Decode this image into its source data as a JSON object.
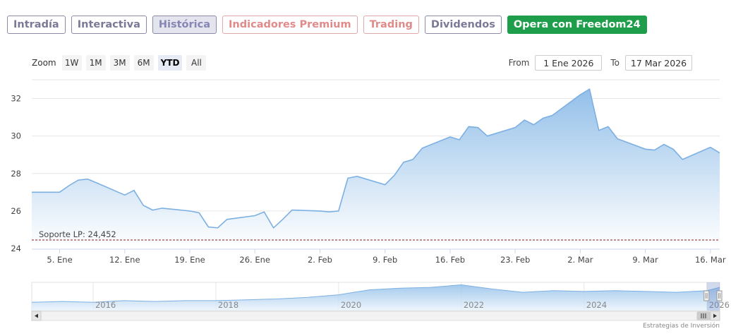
{
  "tabs": [
    {
      "label": "Intradía",
      "style": "normal"
    },
    {
      "label": "Interactiva",
      "style": "normal"
    },
    {
      "label": "Histórica",
      "style": "active"
    },
    {
      "label": "Indicadores Premium",
      "style": "premium"
    },
    {
      "label": "Trading",
      "style": "premium"
    },
    {
      "label": "Dividendos",
      "style": "normal"
    },
    {
      "label": "Opera con Freedom24",
      "style": "cta"
    }
  ],
  "zoom": {
    "label": "Zoom",
    "buttons": [
      "1W",
      "1M",
      "3M",
      "6M",
      "YTD",
      "All"
    ],
    "selected": "YTD"
  },
  "range": {
    "from_label": "From",
    "from_value": "1 Ene 2026",
    "to_label": "To",
    "to_value": "17 Mar 2026"
  },
  "colors": {
    "line": "#7cb0e2",
    "fill_top": "#8dbce8",
    "fill_bottom": "#ffffff",
    "grid": "#e6e6e6",
    "support": "#8b1a1a"
  },
  "chart_data": {
    "type": "area",
    "x_unit": "date",
    "ylim": [
      24,
      33
    ],
    "y_ticks": [
      24,
      26,
      28,
      30,
      32
    ],
    "x_ticks": [
      {
        "date": "2026-01-05",
        "label": "5. Ene"
      },
      {
        "date": "2026-01-12",
        "label": "12. Ene"
      },
      {
        "date": "2026-01-19",
        "label": "19. Ene"
      },
      {
        "date": "2026-01-26",
        "label": "26. Ene"
      },
      {
        "date": "2026-02-02",
        "label": "2. Feb"
      },
      {
        "date": "2026-02-09",
        "label": "9. Feb"
      },
      {
        "date": "2026-02-16",
        "label": "16. Feb"
      },
      {
        "date": "2026-02-23",
        "label": "23. Feb"
      },
      {
        "date": "2026-03-02",
        "label": "2. Mar"
      },
      {
        "date": "2026-03-09",
        "label": "9. Mar"
      },
      {
        "date": "2026-03-16",
        "label": "16. Mar"
      }
    ],
    "x_range": [
      "2026-01-02",
      "2026-03-17"
    ],
    "series": [
      {
        "x": [
          "2026-01-02",
          "2026-01-05",
          "2026-01-06",
          "2026-01-07",
          "2026-01-08",
          "2026-01-09",
          "2026-01-12",
          "2026-01-13",
          "2026-01-14",
          "2026-01-15",
          "2026-01-16",
          "2026-01-19",
          "2026-01-20",
          "2026-01-21",
          "2026-01-22",
          "2026-01-23",
          "2026-01-26",
          "2026-01-27",
          "2026-01-28",
          "2026-01-29",
          "2026-01-30",
          "2026-02-02",
          "2026-02-03",
          "2026-02-04",
          "2026-02-05",
          "2026-02-06",
          "2026-02-09",
          "2026-02-10",
          "2026-02-11",
          "2026-02-12",
          "2026-02-13",
          "2026-02-16",
          "2026-02-17",
          "2026-02-18",
          "2026-02-19",
          "2026-02-20",
          "2026-02-23",
          "2026-02-24",
          "2026-02-25",
          "2026-02-26",
          "2026-02-27",
          "2026-03-02",
          "2026-03-03",
          "2026-03-04",
          "2026-03-05",
          "2026-03-06",
          "2026-03-09",
          "2026-03-10",
          "2026-03-11",
          "2026-03-12",
          "2026-03-13",
          "2026-03-16",
          "2026-03-17"
        ],
        "values": [
          27.0,
          27.0,
          27.35,
          27.65,
          27.7,
          27.5,
          26.85,
          27.1,
          26.3,
          26.05,
          26.15,
          26.0,
          25.9,
          25.15,
          25.1,
          25.55,
          25.75,
          25.95,
          25.1,
          25.55,
          26.05,
          26.0,
          25.95,
          26.0,
          27.75,
          27.85,
          27.4,
          27.9,
          28.6,
          28.75,
          29.35,
          29.95,
          29.8,
          30.5,
          30.45,
          30.0,
          30.45,
          30.85,
          30.6,
          30.95,
          31.1,
          32.2,
          32.5,
          30.3,
          30.5,
          29.85,
          29.3,
          29.25,
          29.55,
          29.3,
          28.75,
          29.4,
          29.1
        ]
      }
    ],
    "annotations": [
      {
        "label": "Soporte LP: 24,452",
        "y": 24.452
      }
    ],
    "navigator": {
      "x_labels": [
        "2016",
        "2018",
        "2020",
        "2022",
        "2024",
        "2026"
      ],
      "years": [
        2015.0,
        2015.5,
        2016.0,
        2016.5,
        2017.0,
        2017.5,
        2018.0,
        2018.5,
        2019.0,
        2019.5,
        2020.0,
        2020.5,
        2021.0,
        2021.5,
        2022.0,
        2022.5,
        2023.0,
        2023.5,
        2024.0,
        2024.5,
        2025.0,
        2025.5,
        2026.0,
        2026.21
      ],
      "values": [
        10,
        11,
        10,
        12,
        11,
        12,
        12,
        13,
        14,
        16,
        19,
        25,
        27,
        28,
        31,
        26,
        22,
        24,
        23,
        24,
        23,
        22,
        24,
        28
      ]
    }
  },
  "credit": "Estrategias de Inversión"
}
